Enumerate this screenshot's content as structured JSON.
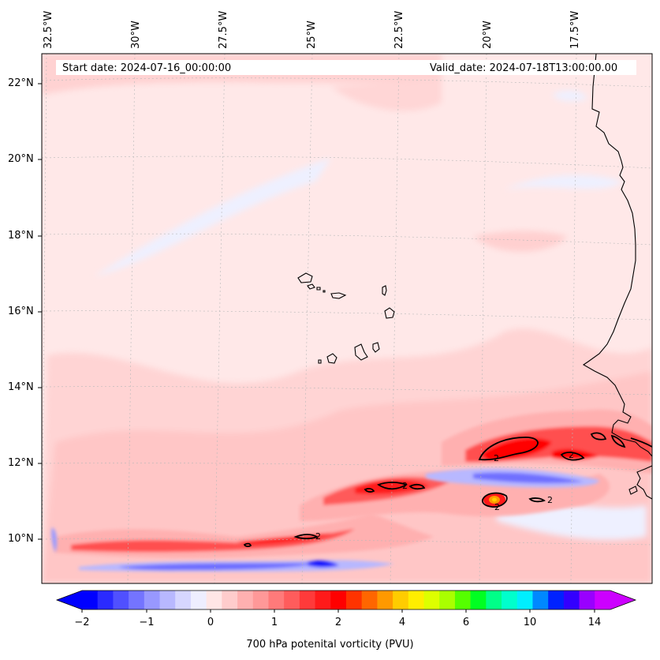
{
  "header": {
    "start_date": "Start date: 2024-07-16_00:00:00",
    "valid_date": "Valid_date: 2024-07-18T13:00:00.00"
  },
  "map": {
    "longitude_labels": [
      "32.5°W",
      "30°W",
      "27.5°W",
      "25°W",
      "22.5°W",
      "20°W",
      "17.5°W"
    ],
    "latitude_labels": [
      "22°N",
      "20°N",
      "18°N",
      "16°N",
      "14°N",
      "12°N",
      "10°N"
    ],
    "contour_level_label": "2",
    "colors": {
      "background": "#ffe8e8",
      "ocean_light": "#fff0f0",
      "pink": "#ffd0d0",
      "salmon": "#ffb0b0",
      "red": "#ff2020",
      "blue_light": "#eef0ff",
      "blue": "#8080ff",
      "blue_dark": "#1010ff",
      "orange": "#ff9900",
      "coast": "#000000"
    }
  },
  "colorbar": {
    "title": "700 hPa potenital vorticity (PVU)",
    "tick_labels": [
      "−2",
      "−1",
      "0",
      "1",
      "2",
      "4",
      "6",
      "10",
      "14"
    ],
    "colors": [
      "#0000ff",
      "#2a2aff",
      "#5050ff",
      "#7474ff",
      "#9898ff",
      "#b8b8ff",
      "#d6d6ff",
      "#eeeeff",
      "#ffe6e6",
      "#ffcccc",
      "#ffb0b0",
      "#ff9898",
      "#ff7a7a",
      "#ff5c5c",
      "#ff3a3a",
      "#ff1a1a",
      "#ff0000",
      "#ff3300",
      "#ff6600",
      "#ff9900",
      "#ffcc00",
      "#ffee00",
      "#ddff00",
      "#aaff00",
      "#55ff00",
      "#00ff22",
      "#00ff88",
      "#00ffcc",
      "#00eeff",
      "#0088ff",
      "#0022ff",
      "#3300ff",
      "#9900ff",
      "#cc00ff"
    ],
    "extend_low_color": "#0000ff",
    "extend_high_color": "#cc00ff"
  }
}
